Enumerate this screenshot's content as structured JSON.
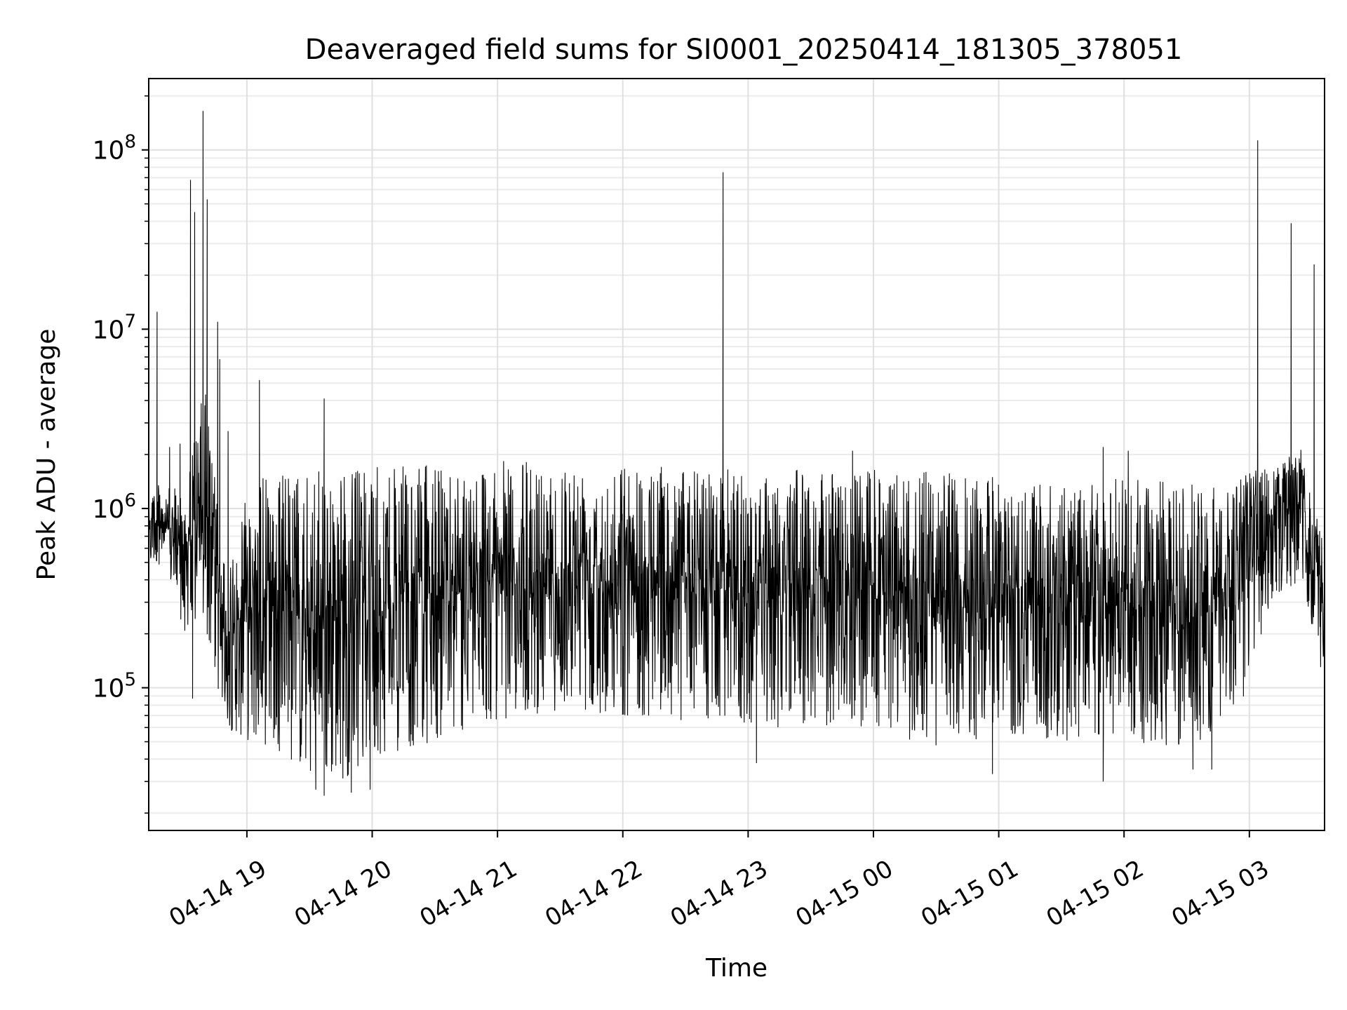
{
  "chart_data": {
    "type": "line",
    "title": "Deaveraged field sums for SI0001_20250414_181305_378051",
    "xlabel": "Time",
    "ylabel": "Peak ADU - average",
    "yscale": "log",
    "ylim": [
      16000,
      250000000
    ],
    "xlim": [
      "2025-04-14 18:13",
      "2025-04-15 03:36"
    ],
    "grid": true,
    "line_color": "#000000",
    "x_ticks": [
      {
        "t": "2025-04-14 19:00",
        "label": "04-14 19"
      },
      {
        "t": "2025-04-14 20:00",
        "label": "04-14 20"
      },
      {
        "t": "2025-04-14 21:00",
        "label": "04-14 21"
      },
      {
        "t": "2025-04-14 22:00",
        "label": "04-14 22"
      },
      {
        "t": "2025-04-14 23:00",
        "label": "04-14 23"
      },
      {
        "t": "2025-04-15 00:00",
        "label": "04-15 00"
      },
      {
        "t": "2025-04-15 01:00",
        "label": "04-15 01"
      },
      {
        "t": "2025-04-15 02:00",
        "label": "04-15 02"
      },
      {
        "t": "2025-04-15 03:00",
        "label": "04-15 03"
      }
    ],
    "y_ticks": [
      {
        "v": 100000,
        "base": "10",
        "exp": "5"
      },
      {
        "v": 1000000,
        "base": "10",
        "exp": "6"
      },
      {
        "v": 10000000,
        "base": "10",
        "exp": "7"
      },
      {
        "v": 100000000,
        "base": "10",
        "exp": "8"
      }
    ],
    "series": [
      {
        "envelope": [
          {
            "t": "2025-04-14 18:13",
            "high": 1500000,
            "low": 450000
          },
          {
            "t": "2025-04-14 18:20",
            "high": 1300000,
            "low": 500000
          },
          {
            "t": "2025-04-14 18:30",
            "high": 1300000,
            "low": 200000
          },
          {
            "t": "2025-04-14 18:40",
            "high": 5000000,
            "low": 200000
          },
          {
            "t": "2025-04-14 18:50",
            "high": 400000,
            "low": 60000
          },
          {
            "t": "2025-04-14 19:00",
            "high": 1500000,
            "low": 50000
          },
          {
            "t": "2025-04-14 19:15",
            "high": 1600000,
            "low": 45000
          },
          {
            "t": "2025-04-14 19:30",
            "high": 1600000,
            "low": 30000
          },
          {
            "t": "2025-04-14 19:45",
            "high": 1650000,
            "low": 30000
          },
          {
            "t": "2025-04-14 20:00",
            "high": 1700000,
            "low": 40000
          },
          {
            "t": "2025-04-14 20:30",
            "high": 1750000,
            "low": 50000
          },
          {
            "t": "2025-04-14 21:00",
            "high": 1850000,
            "low": 65000
          },
          {
            "t": "2025-04-14 21:30",
            "high": 1850000,
            "low": 75000
          },
          {
            "t": "2025-04-14 22:00",
            "high": 1850000,
            "low": 70000
          },
          {
            "t": "2025-04-14 22:30",
            "high": 1700000,
            "low": 65000
          },
          {
            "t": "2025-04-14 23:00",
            "high": 1650000,
            "low": 60000
          },
          {
            "t": "2025-04-14 23:30",
            "high": 1650000,
            "low": 60000
          },
          {
            "t": "2025-04-15 00:00",
            "high": 1650000,
            "low": 60000
          },
          {
            "t": "2025-04-15 00:30",
            "high": 1600000,
            "low": 45000
          },
          {
            "t": "2025-04-15 01:00",
            "high": 1500000,
            "low": 55000
          },
          {
            "t": "2025-04-15 01:30",
            "high": 1300000,
            "low": 45000
          },
          {
            "t": "2025-04-15 02:00",
            "high": 1500000,
            "low": 50000
          },
          {
            "t": "2025-04-15 02:30",
            "high": 1400000,
            "low": 45000
          },
          {
            "t": "2025-04-15 02:55",
            "high": 1500000,
            "low": 70000
          },
          {
            "t": "2025-04-15 03:10",
            "high": 2000000,
            "low": 300000
          },
          {
            "t": "2025-04-15 03:25",
            "high": 2200000,
            "low": 400000
          },
          {
            "t": "2025-04-15 03:36",
            "high": 600000,
            "low": 100000
          }
        ],
        "spikes": [
          {
            "t": "2025-04-14 18:17",
            "v": 12500000
          },
          {
            "t": "2025-04-14 18:23",
            "v": 2200000
          },
          {
            "t": "2025-04-14 18:28",
            "v": 2300000
          },
          {
            "t": "2025-04-14 18:33",
            "v": 68000000
          },
          {
            "t": "2025-04-14 18:35",
            "v": 45000000
          },
          {
            "t": "2025-04-14 18:39",
            "v": 165000000
          },
          {
            "t": "2025-04-14 18:41",
            "v": 53000000
          },
          {
            "t": "2025-04-14 18:46",
            "v": 11000000
          },
          {
            "t": "2025-04-14 18:47",
            "v": 6800000
          },
          {
            "t": "2025-04-14 18:51",
            "v": 2700000
          },
          {
            "t": "2025-04-14 19:06",
            "v": 5200000
          },
          {
            "t": "2025-04-14 19:37",
            "v": 4100000
          },
          {
            "t": "2025-04-14 22:48",
            "v": 75000000
          },
          {
            "t": "2025-04-14 22:48",
            "v": 4900000
          },
          {
            "t": "2025-04-14 23:50",
            "v": 2100000
          },
          {
            "t": "2025-04-15 01:50",
            "v": 2200000
          },
          {
            "t": "2025-04-15 02:02",
            "v": 2100000
          },
          {
            "t": "2025-04-15 03:04",
            "v": 113000000
          },
          {
            "t": "2025-04-15 03:20",
            "v": 39000000
          },
          {
            "t": "2025-04-15 03:31",
            "v": 23000000
          }
        ],
        "dips": [
          {
            "t": "2025-04-14 18:34",
            "v": 87000
          },
          {
            "t": "2025-04-14 19:33",
            "v": 27000
          },
          {
            "t": "2025-04-14 19:37",
            "v": 25000
          },
          {
            "t": "2025-04-14 19:50",
            "v": 26000
          },
          {
            "t": "2025-04-14 19:59",
            "v": 27000
          },
          {
            "t": "2025-04-14 23:04",
            "v": 38000
          },
          {
            "t": "2025-04-15 00:57",
            "v": 33000
          },
          {
            "t": "2025-04-15 01:50",
            "v": 30000
          },
          {
            "t": "2025-04-15 02:33",
            "v": 35000
          },
          {
            "t": "2025-04-15 02:42",
            "v": 35000
          }
        ]
      }
    ]
  }
}
